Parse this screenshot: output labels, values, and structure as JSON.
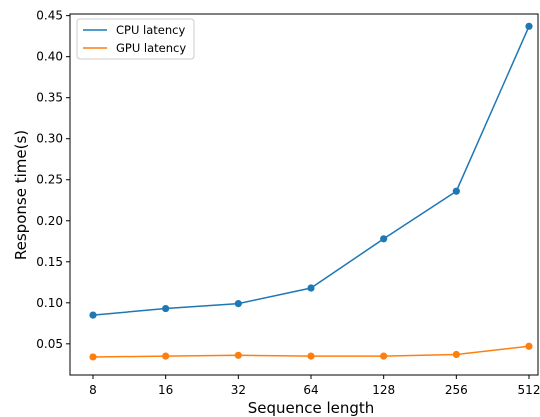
{
  "chart_data": {
    "type": "line",
    "xlabel": "Sequence length",
    "ylabel": "Response time(s)",
    "categories": [
      "8",
      "16",
      "32",
      "64",
      "128",
      "256",
      "512"
    ],
    "ylim": [
      0.012,
      0.452
    ],
    "yticks": [
      0.05,
      0.1,
      0.15,
      0.2,
      0.25,
      0.3,
      0.35,
      0.4,
      0.45
    ],
    "ytick_labels": [
      "0.05",
      "0.10",
      "0.15",
      "0.20",
      "0.25",
      "0.30",
      "0.35",
      "0.40",
      "0.45"
    ],
    "grid": false,
    "legend_position": "top-left",
    "series": [
      {
        "name": "CPU latency",
        "color": "#1f77b4",
        "values": [
          0.085,
          0.093,
          0.099,
          0.118,
          0.178,
          0.236,
          0.437
        ]
      },
      {
        "name": "GPU latency",
        "color": "#ff7f0e",
        "values": [
          0.034,
          0.035,
          0.036,
          0.035,
          0.035,
          0.037,
          0.047
        ]
      }
    ]
  }
}
